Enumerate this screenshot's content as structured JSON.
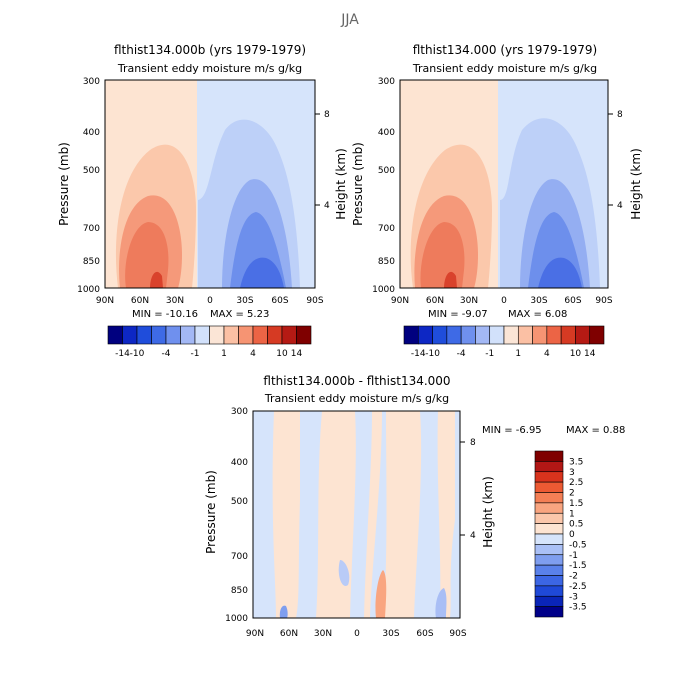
{
  "figure_title": "JJA",
  "chart_data": [
    {
      "type": "heatmap",
      "title": "flthist134.000b (yrs 1979-1979)",
      "subtitle": "Transient eddy moisture m/s g/kg",
      "ylabel": "Pressure (mb)",
      "ylabel_right": "Height (km)",
      "x_ticks": [
        "90N",
        "60N",
        "30N",
        "0",
        "30S",
        "60S",
        "90S"
      ],
      "y_ticks": [
        "300",
        "400",
        "500",
        "700",
        "850",
        "1000"
      ],
      "y_right_ticks": [
        "8",
        "4"
      ],
      "ylim": [
        1000,
        300
      ],
      "y_scale": "log-pressure",
      "min_label": "MIN = -10.16",
      "max_label": "MAX = 5.23",
      "min": -10.16,
      "max": 5.23,
      "colorbar_ticks": [
        "-14",
        "-10",
        "-4",
        "-1",
        "1",
        "4",
        "10",
        "14"
      ],
      "grid": false
    },
    {
      "type": "heatmap",
      "title": "flthist134.000 (yrs 1979-1979)",
      "subtitle": "Transient eddy moisture m/s g/kg",
      "ylabel": "Pressure (mb)",
      "ylabel_right": "Height (km)",
      "x_ticks": [
        "90N",
        "60N",
        "30N",
        "0",
        "30S",
        "60S",
        "90S"
      ],
      "y_ticks": [
        "300",
        "400",
        "500",
        "700",
        "850",
        "1000"
      ],
      "y_right_ticks": [
        "8",
        "4"
      ],
      "ylim": [
        1000,
        300
      ],
      "y_scale": "log-pressure",
      "min_label": "MIN = -9.07",
      "max_label": "MAX = 6.08",
      "min": -9.07,
      "max": 6.08,
      "colorbar_ticks": [
        "-14",
        "-10",
        "-4",
        "-1",
        "1",
        "4",
        "10",
        "14"
      ],
      "grid": false
    },
    {
      "type": "heatmap",
      "title": "flthist134.000b - flthist134.000",
      "subtitle": "Transient eddy moisture m/s g/kg",
      "ylabel": "Pressure (mb)",
      "ylabel_right": "Height (km)",
      "x_ticks": [
        "90N",
        "60N",
        "30N",
        "0",
        "30S",
        "60S",
        "90S"
      ],
      "y_ticks": [
        "300",
        "400",
        "500",
        "700",
        "850",
        "1000"
      ],
      "y_right_ticks": [
        "8",
        "4"
      ],
      "ylim": [
        1000,
        300
      ],
      "y_scale": "log-pressure",
      "min_label": "MIN = -6.95",
      "max_label": "MAX = 0.88",
      "min": -6.95,
      "max": 0.88,
      "colorbar_ticks": [
        "3.5",
        "3",
        "2.5",
        "2",
        "1.5",
        "1",
        "0.5",
        "0",
        "-0.5",
        "-1",
        "-1.5",
        "-2",
        "-2.5",
        "-3",
        "-3.5"
      ],
      "grid": false
    }
  ],
  "colors": {
    "main_scale": [
      "#00007f",
      "#0d27c4",
      "#1f4ddb",
      "#3e6ae6",
      "#6f90ee",
      "#a3b8f5",
      "#d2e1fb",
      "#fbe5d6",
      "#fbc0a4",
      "#f69473",
      "#ec6445",
      "#d63a23",
      "#b51a14",
      "#7f0000"
    ],
    "diff_scale": [
      "#7f0000",
      "#b21715",
      "#d8331d",
      "#ec5a33",
      "#f47f55",
      "#f9a580",
      "#fbc7ab",
      "#fde4d2",
      "#d6e4fb",
      "#aac0f6",
      "#7f9eef",
      "#5a81ea",
      "#3c66e4",
      "#1f49d8",
      "#0a25b8",
      "#000088"
    ]
  }
}
